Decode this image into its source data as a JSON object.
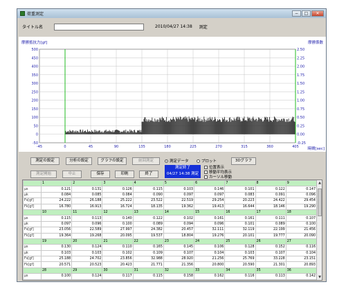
{
  "window": {
    "title": "荷重測定"
  },
  "titlebar": {
    "min": "−",
    "max": "□",
    "close": "✕"
  },
  "header": {
    "title_label": "タイトル名",
    "title_value": "",
    "datetime": "2010/04/27 14:38",
    "mode": "測定"
  },
  "chart_data": {
    "type": "bar",
    "ylabel": "摩擦抵抗力[gf]",
    "y2label": "摩擦係数",
    "xlabel": "時間[sec]",
    "xlim": [
      -45,
      405
    ],
    "ylim": [
      -50,
      500
    ],
    "y2lim": [
      -0.25,
      2.5
    ],
    "xticks": [
      -45,
      0,
      45,
      90,
      135,
      180,
      225,
      270,
      315,
      360,
      405
    ],
    "yticks": [
      -50,
      0,
      50,
      100,
      150,
      200,
      250,
      300,
      350,
      400,
      450,
      500
    ],
    "y2ticks": [
      "-0.25",
      "0.00",
      "0.25",
      "0.50",
      "0.75",
      "1.00",
      "1.25",
      "1.50",
      "1.75",
      "2.00",
      "2.25",
      "2.50"
    ],
    "segments": [
      {
        "x_start": 0,
        "x_end": 135,
        "low": 9,
        "high": 28
      },
      {
        "x_start": 135,
        "x_end": 405,
        "low": 72,
        "high": 105
      }
    ],
    "markers": [
      0,
      405
    ],
    "colors": {
      "bars": "#333333",
      "markers": "#22bb22",
      "grid": "#b8b8b8",
      "axis": "#1a1aaa"
    }
  },
  "controls": {
    "measure_settings": "測定の設定",
    "analysis_settings": "分析の設定",
    "graph_settings": "グラフの設定",
    "reanalyze": "前回測定",
    "start": "測定開始",
    "stop": "中止",
    "save": "保存",
    "print": "印刷",
    "exit": "終了",
    "radio_data": "測定データ",
    "radio_plot": "プロット",
    "graph3d": "3Dグラフ",
    "status_line1": "測定終了",
    "status_line2": "04/27 14:38 測定",
    "chk_position": "位置表示",
    "chk_moving_avg": "移動平均表示",
    "chk_cursor": "カーソル移動"
  },
  "table": {
    "row_labels": [
      "μs",
      "μk",
      "Fs[gf]",
      "Fk[gf]"
    ],
    "blocks": [
      {
        "headers": [
          "1",
          "2",
          "3",
          "4",
          "5",
          "6",
          "7",
          "8",
          "9"
        ],
        "rows": [
          [
            "0.121",
            "0.131",
            "0.126",
            "0.115",
            "0.103",
            "0.146",
            "0.101",
            "0.122",
            "0.147"
          ],
          [
            "0.084",
            "0.085",
            "0.084",
            "0.090",
            "0.097",
            "0.097",
            "0.083",
            "0.091",
            "0.096"
          ],
          [
            "24.222",
            "26.188",
            "25.222",
            "23.522",
            "22.519",
            "29.254",
            "20.223",
            "24.422",
            "29.454"
          ],
          [
            "16.780",
            "16.913",
            "16.724",
            "18.135",
            "19.362",
            "19.413",
            "16.644",
            "18.146",
            "19.290"
          ]
        ]
      },
      {
        "headers": [
          "10",
          "11",
          "12",
          "13",
          "14",
          "15",
          "16",
          "17",
          "18"
        ],
        "rows": [
          [
            "0.115",
            "0.113",
            "0.140",
            "0.122",
            "0.102",
            "0.161",
            "0.161",
            "0.111",
            "0.107"
          ],
          [
            "0.097",
            "0.096",
            "0.100",
            "0.089",
            "0.094",
            "0.096",
            "0.101",
            "0.089",
            "0.100"
          ],
          [
            "23.056",
            "22.589",
            "27.997",
            "24.382",
            "20.457",
            "32.111",
            "32.119",
            "22.199",
            "21.456"
          ],
          [
            "19.364",
            "19.268",
            "20.095",
            "19.537",
            "18.804",
            "19.276",
            "20.101",
            "19.777",
            "20.090"
          ]
        ]
      },
      {
        "headers": [
          "19",
          "20",
          "21",
          "22",
          "23",
          "24",
          "25",
          "26",
          "27"
        ],
        "rows": [
          [
            "0.130",
            "0.124",
            "0.110",
            "0.165",
            "0.145",
            "0.106",
            "0.128",
            "0.152",
            "0.116"
          ],
          [
            "0.103",
            "0.103",
            "0.102",
            "0.109",
            "0.107",
            "0.104",
            "0.103",
            "0.107",
            "0.104"
          ],
          [
            "25.188",
            "24.702",
            "23.856",
            "32.988",
            "28.920",
            "21.256",
            "25.769",
            "33.228",
            "23.151"
          ],
          [
            "20.571",
            "20.523",
            "20.423",
            "21.771",
            "21.356",
            "20.800",
            "20.590",
            "21.301",
            "20.893"
          ]
        ]
      },
      {
        "headers": [
          "28",
          "29",
          "30",
          "31",
          "32",
          "33",
          "34",
          "35",
          "36"
        ],
        "rows": [
          [
            "0.100",
            "0.124",
            "0.117",
            "0.115",
            "0.158",
            "0.162",
            "0.116",
            "0.113",
            "0.142"
          ],
          [
            "0.104",
            "0.104",
            "0.103",
            "0.104",
            "0.106",
            "0.107",
            "0.103",
            "0.104",
            "0.107"
          ]
        ]
      }
    ]
  }
}
